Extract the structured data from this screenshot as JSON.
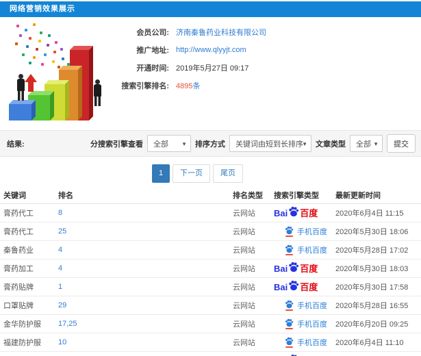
{
  "header": {
    "title": "网络营销效果展示"
  },
  "info": {
    "company": {
      "label": "会员公司:",
      "value": "济南秦鲁药业科技有限公司"
    },
    "site": {
      "label": "推广地址:",
      "value": "http://www.qlyyjt.com"
    },
    "opened": {
      "label": "开通时间:",
      "value": "2019年5月27日 09:17"
    },
    "rank_count": {
      "label": "搜索引擎排名:",
      "value": "4895",
      "suffix": "条"
    }
  },
  "filters": {
    "result_label": "结果:",
    "engine_label": "分搜索引擎查看",
    "engine_value": "全部",
    "sort_label": "排序方式",
    "sort_value": "关键词由短到长排序",
    "article_label": "文章类型",
    "article_value": "全部",
    "submit_label": "提交"
  },
  "pagination": {
    "current": "1",
    "next_label": "下一页",
    "last_label": "尾页"
  },
  "logos": {
    "baidu": {
      "latin": "Bai",
      "du": "du",
      "cn": "百度"
    },
    "mobile": {
      "label": "手机百度"
    }
  },
  "table": {
    "headers": [
      "关键词",
      "排名",
      "排名类型",
      "搜索引擎类型",
      "最新更新时间"
    ],
    "rows": [
      {
        "keyword": "膏药代工",
        "rank": "8",
        "rank_type": "云网站",
        "engine": "baidu",
        "updated": "2020年6月4日 11:15"
      },
      {
        "keyword": "膏药代工",
        "rank": "25",
        "rank_type": "云网站",
        "engine": "mobile",
        "updated": "2020年5月30日 18:06"
      },
      {
        "keyword": "秦鲁药业",
        "rank": "4",
        "rank_type": "云网站",
        "engine": "mobile",
        "updated": "2020年5月28日 17:02"
      },
      {
        "keyword": "膏药加工",
        "rank": "4",
        "rank_type": "云网站",
        "engine": "baidu",
        "updated": "2020年5月30日 18:03"
      },
      {
        "keyword": "膏药贴牌",
        "rank": "1",
        "rank_type": "云网站",
        "engine": "baidu",
        "updated": "2020年5月30日 17:58"
      },
      {
        "keyword": "口罩贴牌",
        "rank": "29",
        "rank_type": "云网站",
        "engine": "mobile",
        "updated": "2020年5月28日 16:55"
      },
      {
        "keyword": "金华防护服",
        "rank": "17,25",
        "rank_type": "云网站",
        "engine": "mobile",
        "updated": "2020年6月20日 09:25"
      },
      {
        "keyword": "福建防护服",
        "rank": "10",
        "rank_type": "云网站",
        "engine": "mobile",
        "updated": "2020年6月4日 11:10"
      },
      {
        "keyword": "",
        "rank": "",
        "rank_type": "",
        "engine": "baidu",
        "updated": ""
      }
    ]
  },
  "colors": {
    "header_bg": "#1485d6",
    "link": "#2f7cd1",
    "count_red": "#e8503a",
    "pagination_active": "#337ab7",
    "baidu_blue": "#2632e0",
    "baidu_red": "#e00b12"
  }
}
